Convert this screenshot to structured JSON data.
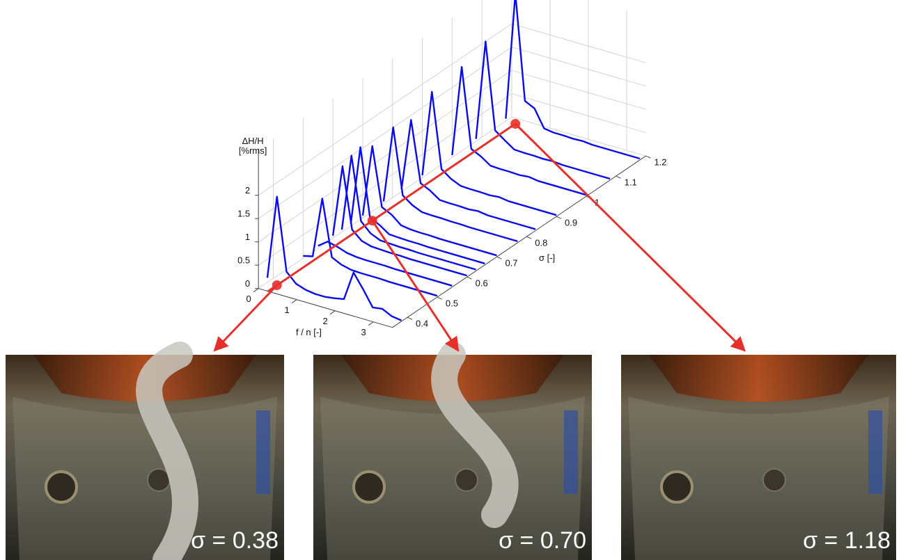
{
  "chart_data": {
    "type": "waterfall",
    "zlabel": [
      "ΔH/H",
      "[%rms]"
    ],
    "xlabel": "f / n [-]",
    "ylabel": "σ  [-]",
    "x": [
      0,
      0.25,
      0.5,
      0.75,
      1,
      1.25,
      1.5,
      1.75,
      2,
      2.25,
      2.5,
      2.75,
      3,
      3.25,
      3.5
    ],
    "xlim": [
      0,
      3.5
    ],
    "xticks": [
      0,
      1,
      2,
      3
    ],
    "ylim": [
      0.35,
      1.2
    ],
    "yticks": [
      0.4,
      0.5,
      0.6,
      0.7,
      0.8,
      0.9,
      1,
      1.1,
      1.2
    ],
    "zlim": [
      0,
      3
    ],
    "zticks": [
      0,
      0.5,
      1,
      1.5,
      2
    ],
    "grid": true,
    "series": [
      {
        "sigma": 0.38,
        "color": "#0a0aee",
        "values": [
          0.1,
          1.9,
          0.35,
          0.15,
          0.08,
          0.05,
          0.05,
          0.08,
          0.12,
          0.75,
          0.45,
          0.12,
          0.15,
          0.05,
          0.02
        ]
      },
      {
        "sigma": 0.5,
        "color": "#0a0aee",
        "values": [
          0.05,
          0.1,
          1.4,
          0.2,
          0.1,
          0.05,
          0.04,
          0.04,
          0.04,
          0.03,
          0.03,
          0.03,
          0.03,
          0.03,
          0.03
        ]
      },
      {
        "sigma": 0.55,
        "color": "#0a0aee",
        "values": [
          0.05,
          0.2,
          0.15,
          0.08,
          0.05,
          0.04,
          0.04,
          0.04,
          0.03,
          0.03,
          0.03,
          0.03,
          0.03,
          0.03,
          0.03
        ]
      },
      {
        "sigma": 0.6,
        "color": "#0a0aee",
        "values": [
          0.05,
          1.6,
          0.3,
          0.12,
          0.06,
          0.05,
          0.04,
          0.04,
          0.03,
          0.03,
          0.03,
          0.03,
          0.03,
          0.03,
          0.03
        ]
      },
      {
        "sigma": 0.63,
        "color": "#0a0aee",
        "values": [
          0.05,
          1.7,
          0.35,
          0.15,
          0.06,
          0.05,
          0.04,
          0.04,
          0.03,
          0.03,
          0.03,
          0.03,
          0.03,
          0.03,
          0.03
        ]
      },
      {
        "sigma": 0.66,
        "color": "#0a0aee",
        "values": [
          0.05,
          1.75,
          0.3,
          0.2,
          0.06,
          0.05,
          0.04,
          0.04,
          0.03,
          0.03,
          0.03,
          0.03,
          0.03,
          0.03,
          0.03
        ]
      },
      {
        "sigma": 0.7,
        "color": "#0a0aee",
        "values": [
          0.05,
          1.6,
          0.35,
          0.25,
          0.08,
          0.05,
          0.04,
          0.04,
          0.03,
          0.03,
          0.03,
          0.03,
          0.03,
          0.03,
          0.03
        ]
      },
      {
        "sigma": 0.77,
        "color": "#0a0aee",
        "values": [
          0.05,
          1.7,
          0.3,
          0.15,
          0.06,
          0.05,
          0.05,
          0.04,
          0.04,
          0.03,
          0.03,
          0.03,
          0.03,
          0.03,
          0.03
        ]
      },
      {
        "sigma": 0.83,
        "color": "#0a0aee",
        "values": [
          0.05,
          1.6,
          0.3,
          0.2,
          0.06,
          0.05,
          0.05,
          0.04,
          0.06,
          0.03,
          0.03,
          0.03,
          0.03,
          0.03,
          0.03
        ]
      },
      {
        "sigma": 0.9,
        "color": "#0a0aee",
        "values": [
          0.05,
          1.9,
          0.3,
          0.15,
          0.06,
          0.05,
          0.05,
          0.04,
          0.06,
          0.03,
          0.03,
          0.03,
          0.03,
          0.03,
          0.03
        ]
      },
      {
        "sigma": 1.0,
        "color": "#0a0aee",
        "values": [
          0.05,
          2.0,
          0.3,
          0.2,
          0.06,
          0.05,
          0.05,
          0.04,
          0.06,
          0.03,
          0.03,
          0.03,
          0.03,
          0.03,
          0.03
        ]
      },
      {
        "sigma": 1.08,
        "color": "#0a0aee",
        "values": [
          0.05,
          2.2,
          0.35,
          0.2,
          0.06,
          0.05,
          0.05,
          0.04,
          0.05,
          0.03,
          0.03,
          0.03,
          0.03,
          0.03,
          0.03
        ]
      },
      {
        "sigma": 1.18,
        "color": "#0a0aee",
        "values": [
          0.05,
          2.8,
          0.55,
          0.45,
          0.08,
          0.05,
          0.05,
          0.04,
          0.05,
          0.03,
          0.03,
          0.03,
          0.03,
          0.03,
          0.03
        ]
      }
    ]
  },
  "photos": [
    {
      "sigma": 0.38,
      "label": "σ = 0.38"
    },
    {
      "sigma": 0.7,
      "label": "σ = 0.70"
    },
    {
      "sigma": 1.18,
      "label": "σ = 1.18"
    }
  ]
}
